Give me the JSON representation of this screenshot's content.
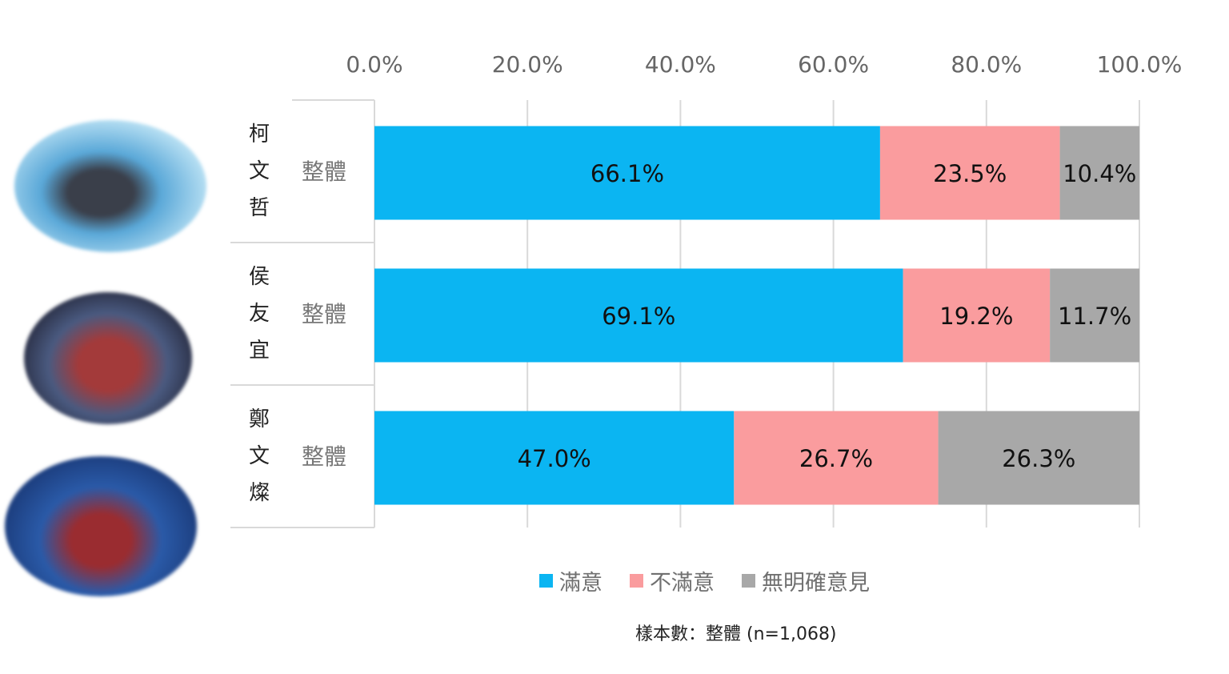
{
  "chart_data": {
    "type": "bar",
    "orientation": "horizontal",
    "stacked": true,
    "categories": [
      {
        "name": "柯文哲",
        "group": "整體"
      },
      {
        "name": "侯友宜",
        "group": "整體"
      },
      {
        "name": "鄭文燦",
        "group": "整體"
      }
    ],
    "series": [
      {
        "name": "滿意",
        "color": "#0BB5F2",
        "values": [
          66.1,
          69.1,
          47.0
        ],
        "labels": [
          "66.1%",
          "69.1%",
          "47.0%"
        ]
      },
      {
        "name": "不滿意",
        "color": "#FA9C9E",
        "values": [
          23.5,
          19.2,
          26.7
        ],
        "labels": [
          "23.5%",
          "19.2%",
          "26.7%"
        ]
      },
      {
        "name": "無明確意見",
        "color": "#A8A8A8",
        "values": [
          10.4,
          11.7,
          26.3
        ],
        "labels": [
          "10.4%",
          "11.7%",
          "26.3%"
        ]
      }
    ],
    "xlim": [
      0,
      100
    ],
    "xticks": [
      "0.0%",
      "20.0%",
      "40.0%",
      "60.0%",
      "80.0%",
      "100.0%"
    ],
    "xaxis_position": "top",
    "grid": true,
    "legend_position": "bottom",
    "note": "樣本數：整體 (n=1,068)"
  },
  "photos": [
    "柯文哲 photo",
    "侯友宜 photo",
    "鄭文燦 photo"
  ]
}
